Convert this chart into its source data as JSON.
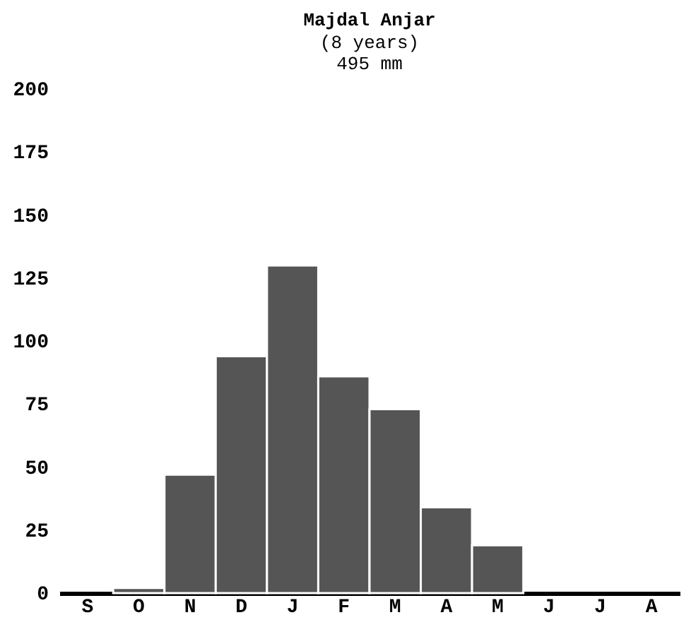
{
  "chart_data": {
    "type": "bar",
    "title": "Majdal Anjar",
    "subtitle": "(8 years)\n495 mm",
    "categories": [
      "S",
      "O",
      "N",
      "D",
      "J",
      "F",
      "M",
      "A",
      "M",
      "J",
      "J",
      "A"
    ],
    "values": [
      null,
      2,
      47,
      94,
      130,
      86,
      73,
      34,
      19,
      null,
      null,
      null
    ],
    "color": "#555555",
    "ylim": [
      0,
      200
    ],
    "yticks": [
      0,
      25,
      50,
      75,
      100,
      125,
      150,
      175,
      200
    ],
    "grid": false
  }
}
